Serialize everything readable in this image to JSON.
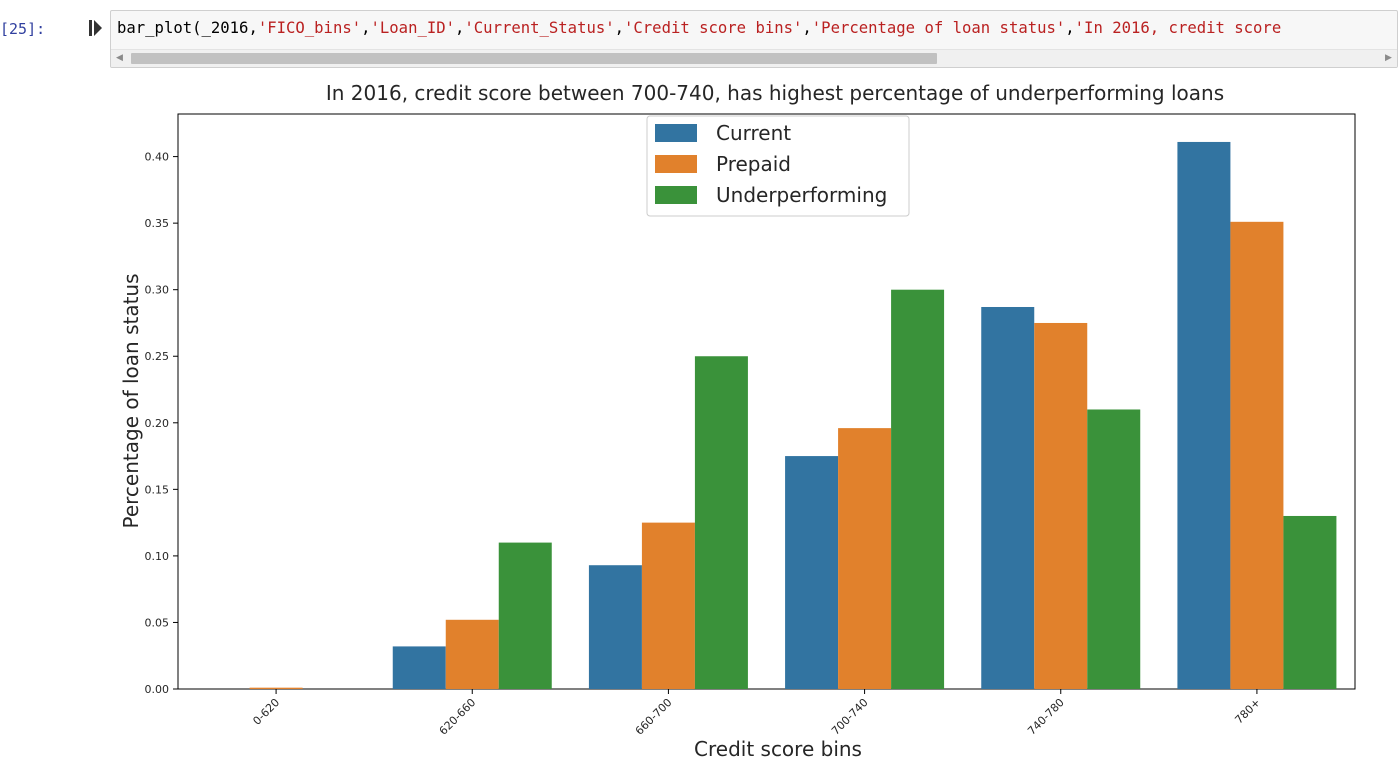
{
  "cell": {
    "prompt": "[25]:",
    "code": {
      "fn": "bar_plot(",
      "arg1": "_2016,",
      "arg2": "'FICO_bins'",
      "arg3": "'Loan_ID'",
      "arg4": "'Current_Status'",
      "arg5": "'Credit score bins'",
      "arg6": "'Percentage of loan status'",
      "arg7": "'In 2016, credit score"
    }
  },
  "chart_data": {
    "type": "bar",
    "title": "In 2016, credit score between 700-740, has highest percentage of underperforming loans",
    "xlabel": "Credit score bins",
    "ylabel": "Percentage of loan status",
    "ylim": [
      0,
      0.432
    ],
    "yticks": [
      "0.00",
      "0.05",
      "0.10",
      "0.15",
      "0.20",
      "0.25",
      "0.30",
      "0.35",
      "0.40"
    ],
    "categories": [
      "0-620",
      "620-660",
      "660-700",
      "700-740",
      "740-780",
      "780+"
    ],
    "series": [
      {
        "name": "Current",
        "color": "#3274a1",
        "values": [
          0.0,
          0.032,
          0.093,
          0.175,
          0.287,
          0.411
        ]
      },
      {
        "name": "Prepaid",
        "color": "#e1812c",
        "values": [
          0.001,
          0.052,
          0.125,
          0.196,
          0.275,
          0.351
        ]
      },
      {
        "name": "Underperforming",
        "color": "#3a923a",
        "values": [
          0.0,
          0.11,
          0.25,
          0.3,
          0.21,
          0.13
        ]
      }
    ],
    "legend_position": "top-center",
    "grid": false
  }
}
